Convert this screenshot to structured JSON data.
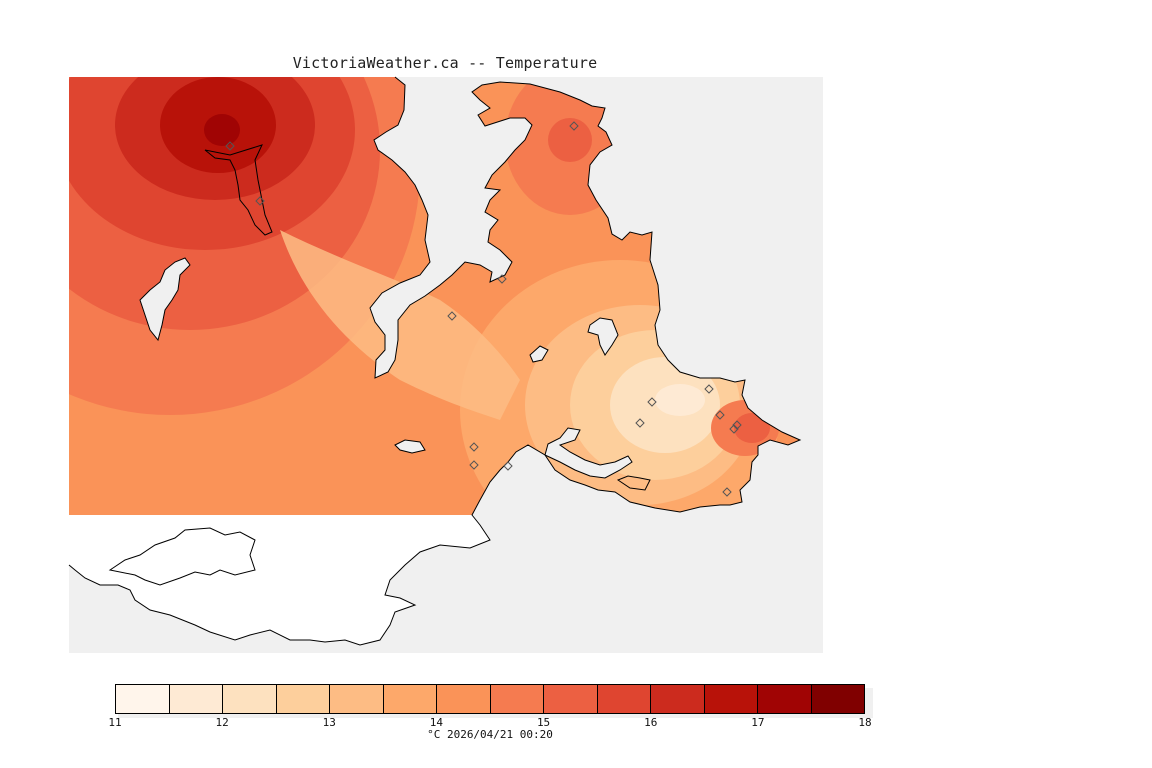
{
  "title": "VictoriaWeather.ca -- Temperature",
  "colors": {
    "water": "#f0f0f0",
    "unmapped_land": "#ffffff",
    "coast": "#000000",
    "station": "#555555"
  },
  "legend": {
    "ticks": [
      "11",
      "12",
      "13",
      "14",
      "15",
      "16",
      "17",
      "18"
    ],
    "swatches": [
      "#fff5eb",
      "#feead4",
      "#fde1bf",
      "#fdcf9c",
      "#fdbc84",
      "#fda86a",
      "#fa9358",
      "#f57b50",
      "#ec6042",
      "#df4530",
      "#cc2b1e",
      "#b81209",
      "#a00404",
      "#800000"
    ],
    "caption": "°C  2026/04/21 00:20"
  }
}
